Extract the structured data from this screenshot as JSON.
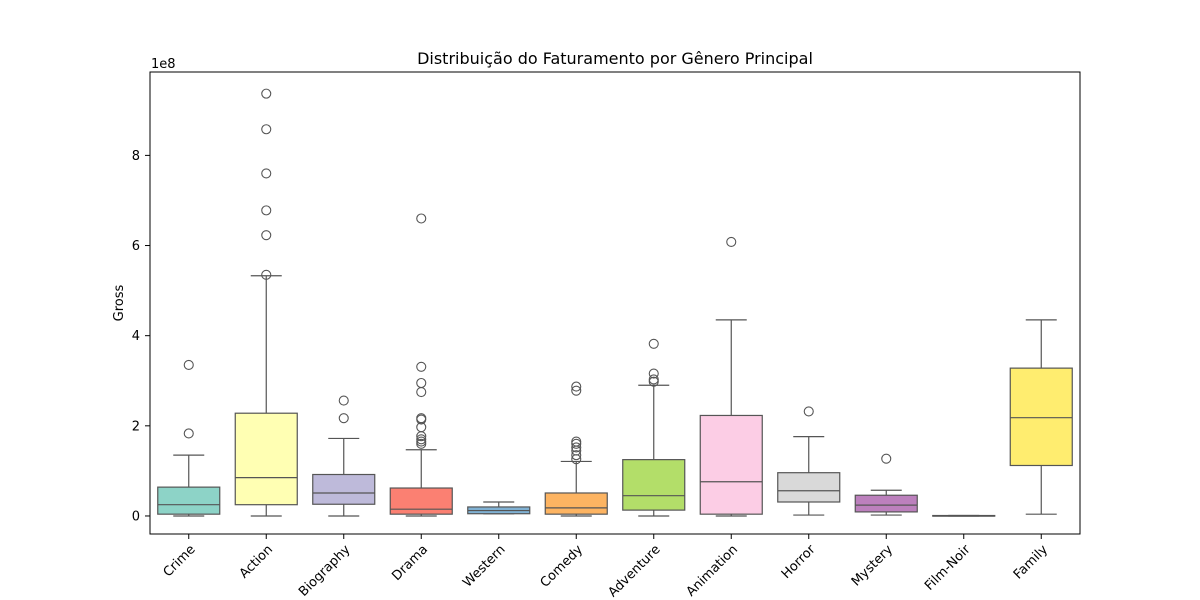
{
  "chart_data": {
    "type": "box",
    "title": "Distribuição do Faturamento por Gênero Principal",
    "xlabel": "",
    "ylabel": "Gross",
    "y_multiplier_label": "1e8",
    "y_unit_scale": 100000000,
    "ylim": [
      -40000000,
      985000000
    ],
    "yticks": [
      0,
      200000000,
      400000000,
      600000000,
      800000000
    ],
    "ytick_labels": [
      "0",
      "2",
      "4",
      "6",
      "8"
    ],
    "grid": false,
    "legend": "none",
    "categories": [
      {
        "name": "Crime",
        "color": "#8dd3c7",
        "whisker_low": 0,
        "q1": 4000000,
        "median": 25000000,
        "q3": 64000000,
        "whisker_high": 135000000,
        "outliers": [
          183000000,
          335000000
        ]
      },
      {
        "name": "Action",
        "color": "#ffffb3",
        "whisker_low": 0,
        "q1": 25000000,
        "median": 85000000,
        "q3": 228000000,
        "whisker_high": 533000000,
        "outliers": [
          535000000,
          623000000,
          678000000,
          760000000,
          858000000,
          937000000
        ]
      },
      {
        "name": "Biography",
        "color": "#bebada",
        "whisker_low": 0,
        "q1": 26000000,
        "median": 51000000,
        "q3": 92000000,
        "whisker_high": 172000000,
        "outliers": [
          217000000,
          256000000
        ]
      },
      {
        "name": "Drama",
        "color": "#fb8072",
        "whisker_low": 0,
        "q1": 4000000,
        "median": 15000000,
        "q3": 62000000,
        "whisker_high": 147000000,
        "outliers": [
          160000000,
          165000000,
          170000000,
          177000000,
          197000000,
          214000000,
          217000000,
          275000000,
          295000000,
          331000000,
          660000000
        ]
      },
      {
        "name": "Western",
        "color": "#80b1d3",
        "whisker_low": 5000000,
        "q1": 5000000,
        "median": 12000000,
        "q3": 20000000,
        "whisker_high": 31000000,
        "outliers": []
      },
      {
        "name": "Comedy",
        "color": "#fdb462",
        "whisker_low": 0,
        "q1": 4000000,
        "median": 18000000,
        "q3": 51000000,
        "whisker_high": 121000000,
        "outliers": [
          126000000,
          135000000,
          145000000,
          152000000,
          160000000,
          165000000,
          278000000,
          287000000
        ]
      },
      {
        "name": "Adventure",
        "color": "#b3de69",
        "whisker_low": 0,
        "q1": 13000000,
        "median": 45000000,
        "q3": 125000000,
        "whisker_high": 290000000,
        "outliers": [
          298000000,
          303000000,
          316000000,
          382000000
        ]
      },
      {
        "name": "Animation",
        "color": "#fccde5",
        "whisker_low": 0,
        "q1": 4000000,
        "median": 76000000,
        "q3": 223000000,
        "whisker_high": 435000000,
        "outliers": [
          608000000
        ]
      },
      {
        "name": "Horror",
        "color": "#d9d9d9",
        "whisker_low": 2000000,
        "q1": 31000000,
        "median": 56000000,
        "q3": 96000000,
        "whisker_high": 176000000,
        "outliers": [
          232000000
        ]
      },
      {
        "name": "Mystery",
        "color": "#bc80bd",
        "whisker_low": 2000000,
        "q1": 9000000,
        "median": 24000000,
        "q3": 46000000,
        "whisker_high": 57000000,
        "outliers": [
          127000000
        ]
      },
      {
        "name": "Film-Noir",
        "color": "#ccebc5",
        "whisker_low": 0,
        "q1": 0,
        "median": 0,
        "q3": 1000000,
        "whisker_high": 1000000,
        "outliers": []
      },
      {
        "name": "Family",
        "color": "#ffed6f",
        "whisker_low": 4000000,
        "q1": 112000000,
        "median": 218000000,
        "q3": 328000000,
        "whisker_high": 435000000,
        "outliers": []
      }
    ]
  }
}
